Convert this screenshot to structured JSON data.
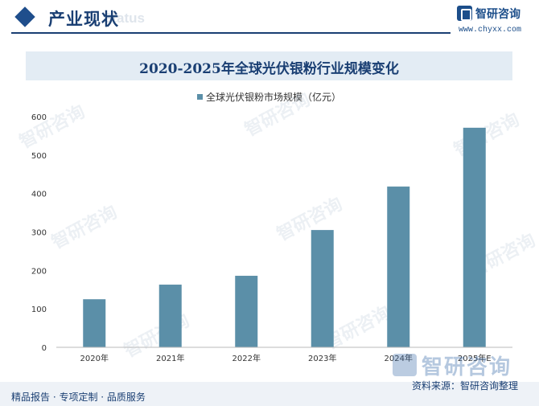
{
  "header": {
    "section_title": "产业现状",
    "ghost_text": "Status",
    "logo_name": "智研咨询",
    "logo_url": "www.chyxx.com",
    "logo_icon": "chyxx-logo-icon"
  },
  "footer": {
    "left_text": "精品报告 · 专项定制 · 品质服务",
    "source_text": "资料来源：智研咨询整理"
  },
  "watermark_text": "智研咨询",
  "colors": {
    "bar": "#5b8fa8",
    "brand": "#1a3f73",
    "title_band": "#e3ecf4"
  },
  "chart_data": {
    "type": "bar",
    "title": "2020-2025年全球光伏银粉行业规模变化",
    "legend_position": "top-center",
    "grid": false,
    "categories": [
      "2020年",
      "2021年",
      "2022年",
      "2023年",
      "2024年",
      "2025年E"
    ],
    "series": [
      {
        "name": "全球光伏银粉市场规模（亿元）",
        "values": [
          125,
          163,
          186,
          305,
          418,
          571
        ]
      }
    ],
    "yticks": [
      0,
      100,
      200,
      300,
      400,
      500,
      600
    ],
    "ylim": [
      0,
      600
    ]
  }
}
